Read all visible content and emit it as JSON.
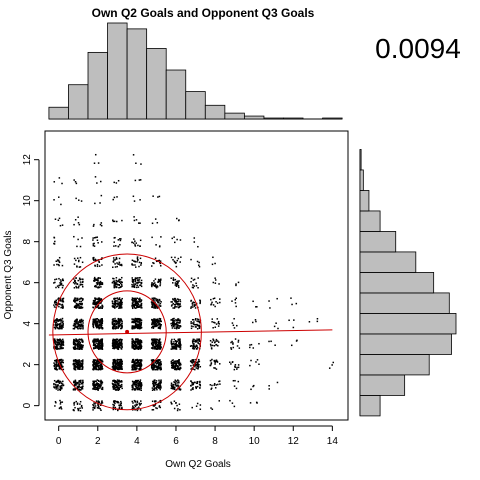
{
  "chart_data": {
    "type": "scatter",
    "title": "Own Q2 Goals and Opponent Q3 Goals",
    "statistic": "0.0094",
    "xlabel": "Own Q2 Goals",
    "ylabel": "Opponent Q3 Goals",
    "x_ticks": [
      0,
      2,
      4,
      6,
      8,
      10,
      12,
      14
    ],
    "y_ticks": [
      0,
      2,
      4,
      6,
      8,
      10,
      12
    ],
    "xlim": [
      -0.7,
      14.8
    ],
    "ylim": [
      -0.7,
      13.4
    ],
    "grid": false,
    "jittered_points": {
      "x": [
        0,
        0,
        0,
        0,
        0,
        0,
        0,
        0,
        0,
        0,
        0,
        0,
        1,
        1,
        1,
        1,
        1,
        1,
        1,
        1,
        1,
        1,
        1,
        1,
        2,
        2,
        2,
        2,
        2,
        2,
        2,
        2,
        2,
        2,
        2,
        2,
        2,
        3,
        3,
        3,
        3,
        3,
        3,
        3,
        3,
        3,
        3,
        3,
        3,
        4,
        4,
        4,
        4,
        4,
        4,
        4,
        4,
        4,
        4,
        4,
        4,
        4,
        5,
        5,
        5,
        5,
        5,
        5,
        5,
        5,
        5,
        5,
        5,
        6,
        6,
        6,
        6,
        6,
        6,
        6,
        6,
        6,
        6,
        7,
        7,
        7,
        7,
        7,
        7,
        7,
        7,
        7,
        8,
        8,
        8,
        8,
        8,
        8,
        8,
        8,
        9,
        9,
        9,
        9,
        9,
        9,
        9,
        10,
        10,
        10,
        10,
        10,
        10,
        11,
        11,
        11,
        11,
        12,
        12,
        12,
        13,
        14
      ],
      "y": [
        0,
        1,
        2,
        3,
        4,
        5,
        6,
        7,
        8,
        9,
        10,
        11,
        0,
        1,
        2,
        3,
        4,
        5,
        6,
        7,
        8,
        9,
        10,
        11,
        0,
        1,
        2,
        3,
        4,
        5,
        6,
        7,
        8,
        9,
        10,
        11,
        12,
        0,
        1,
        2,
        3,
        4,
        5,
        6,
        7,
        8,
        9,
        10,
        11,
        0,
        1,
        2,
        3,
        4,
        5,
        6,
        7,
        8,
        9,
        10,
        11,
        12,
        0,
        1,
        2,
        3,
        4,
        5,
        6,
        7,
        8,
        9,
        10,
        0,
        1,
        2,
        3,
        4,
        5,
        6,
        7,
        8,
        9,
        0,
        1,
        2,
        3,
        4,
        5,
        6,
        7,
        8,
        0,
        1,
        2,
        3,
        4,
        5,
        6,
        7,
        0,
        1,
        2,
        3,
        4,
        5,
        6,
        0,
        1,
        2,
        3,
        4,
        5,
        1,
        3,
        4,
        5,
        3,
        4,
        5,
        4,
        2
      ],
      "weights": [
        3,
        6,
        8,
        8,
        7,
        6,
        4,
        3,
        2,
        2,
        1,
        1,
        4,
        7,
        9,
        9,
        8,
        7,
        5,
        3,
        2,
        2,
        1,
        1,
        5,
        8,
        10,
        10,
        9,
        8,
        6,
        4,
        3,
        2,
        1,
        1,
        1,
        5,
        8,
        10,
        10,
        9,
        8,
        6,
        4,
        3,
        2,
        1,
        1,
        5,
        8,
        10,
        10,
        9,
        8,
        6,
        4,
        3,
        2,
        1,
        1,
        1,
        4,
        7,
        9,
        9,
        8,
        7,
        5,
        3,
        2,
        1,
        1,
        3,
        6,
        8,
        8,
        7,
        6,
        4,
        3,
        2,
        1,
        2,
        5,
        6,
        6,
        5,
        4,
        3,
        2,
        1,
        1,
        3,
        4,
        4,
        3,
        3,
        2,
        1,
        1,
        2,
        3,
        3,
        2,
        2,
        1,
        1,
        1,
        2,
        2,
        1,
        1,
        1,
        1,
        1,
        1,
        1,
        1,
        1,
        1,
        1
      ]
    },
    "regression_line": {
      "x": [
        -0.5,
        14
      ],
      "y": [
        3.45,
        3.7
      ]
    },
    "mean_point": {
      "x": 3.5,
      "y": 3.6
    },
    "ellipse_radii": [
      2.0,
      3.8
    ],
    "x_histogram": {
      "bins": [
        0,
        1,
        2,
        3,
        4,
        5,
        6,
        7,
        8,
        9,
        10,
        11,
        12,
        13,
        14
      ],
      "counts": [
        12,
        35,
        68,
        98,
        92,
        72,
        50,
        28,
        14,
        6,
        3,
        1,
        1,
        0,
        1
      ]
    },
    "y_histogram": {
      "bins": [
        0,
        1,
        2,
        3,
        4,
        5,
        6,
        7,
        8,
        9,
        10,
        11,
        12
      ],
      "counts": [
        18,
        40,
        62,
        82,
        86,
        80,
        66,
        50,
        32,
        18,
        8,
        3,
        1
      ]
    },
    "colors": {
      "bar_fill": "#bebebe",
      "bar_stroke": "#000000",
      "points": "#000000",
      "overlay": "#cc0000"
    }
  }
}
